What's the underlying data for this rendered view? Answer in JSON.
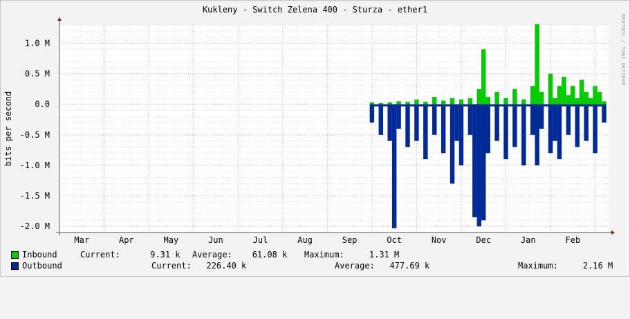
{
  "title": "Kukleny - Switch Zelena 400 - Sturza - ether1",
  "watermark": "RRDTOOL / TOBI OETIKER",
  "colors": {
    "inbound": "#00cc00",
    "outbound": "#002a97",
    "grid_minor": "#dddddd",
    "grid_major": "#f0a0a0",
    "axis": "#555555"
  },
  "legend": {
    "inbound": {
      "name": "Inbound",
      "current": "Current:      9.31 k",
      "average": "Average:    61.08 k",
      "maximum": "Maximum:     1.31 M"
    },
    "outbound": {
      "name": "Outbound",
      "current": "Current:   226.40 k",
      "average": "Average:   477.69 k",
      "maximum": "Maximum:     2.16 M"
    }
  },
  "chart_data": {
    "type": "area",
    "title": "Kukleny - Switch Zelena 400 - Sturza - ether1",
    "ylabel": "bits per second",
    "ylim": [
      -2.1,
      1.3
    ],
    "ytick_values": [
      1.0,
      0.5,
      0.0,
      -0.5,
      -1.0,
      -1.5,
      -2.0
    ],
    "ytick_labels": [
      "1.0 M",
      "0.5 M",
      "0.0",
      "-0.5 M",
      "-1.0 M",
      "-1.5 M",
      "-2.0 M"
    ],
    "xtick_labels": [
      "Mar",
      "Apr",
      "May",
      "Jun",
      "Jul",
      "Aug",
      "Sep",
      "Oct",
      "Nov",
      "Dec",
      "Jan",
      "Feb"
    ],
    "x_start": 0,
    "x_end": 12.3,
    "series": [
      {
        "name": "Inbound",
        "color": "#00cc00",
        "x": [
          7.0,
          7.2,
          7.4,
          7.6,
          7.8,
          8.0,
          8.2,
          8.4,
          8.6,
          8.8,
          9.0,
          9.2,
          9.4,
          9.5,
          9.6,
          9.8,
          10.0,
          10.2,
          10.4,
          10.6,
          10.7,
          10.8,
          11.0,
          11.1,
          11.2,
          11.3,
          11.4,
          11.5,
          11.6,
          11.7,
          11.8,
          11.9,
          12.0,
          12.1,
          12.2
        ],
        "values": [
          0.03,
          0.02,
          0.03,
          0.05,
          0.04,
          0.08,
          0.04,
          0.12,
          0.06,
          0.1,
          0.08,
          0.1,
          0.25,
          0.9,
          0.12,
          0.2,
          0.1,
          0.25,
          0.08,
          0.3,
          1.31,
          0.2,
          0.5,
          0.1,
          0.3,
          0.45,
          0.15,
          0.3,
          0.1,
          0.4,
          0.2,
          0.1,
          0.3,
          0.2,
          0.05
        ]
      },
      {
        "name": "Outbound",
        "color": "#002a97",
        "x": [
          7.0,
          7.2,
          7.4,
          7.5,
          7.6,
          7.8,
          8.0,
          8.2,
          8.4,
          8.6,
          8.8,
          8.9,
          9.0,
          9.2,
          9.3,
          9.4,
          9.5,
          9.6,
          9.8,
          10.0,
          10.2,
          10.4,
          10.6,
          10.7,
          10.8,
          11.0,
          11.1,
          11.2,
          11.4,
          11.6,
          11.8,
          12.0,
          12.2
        ],
        "values": [
          -0.3,
          -0.5,
          -0.6,
          -2.03,
          -0.4,
          -0.7,
          -0.6,
          -0.9,
          -0.5,
          -0.8,
          -1.3,
          -0.6,
          -1.0,
          -0.5,
          -1.85,
          -2.0,
          -1.9,
          -0.8,
          -0.6,
          -0.9,
          -0.7,
          -1.0,
          -0.5,
          -1.0,
          -0.4,
          -0.8,
          -0.6,
          -0.9,
          -0.5,
          -0.7,
          -0.6,
          -0.8,
          -0.3
        ]
      }
    ],
    "grid": true
  }
}
